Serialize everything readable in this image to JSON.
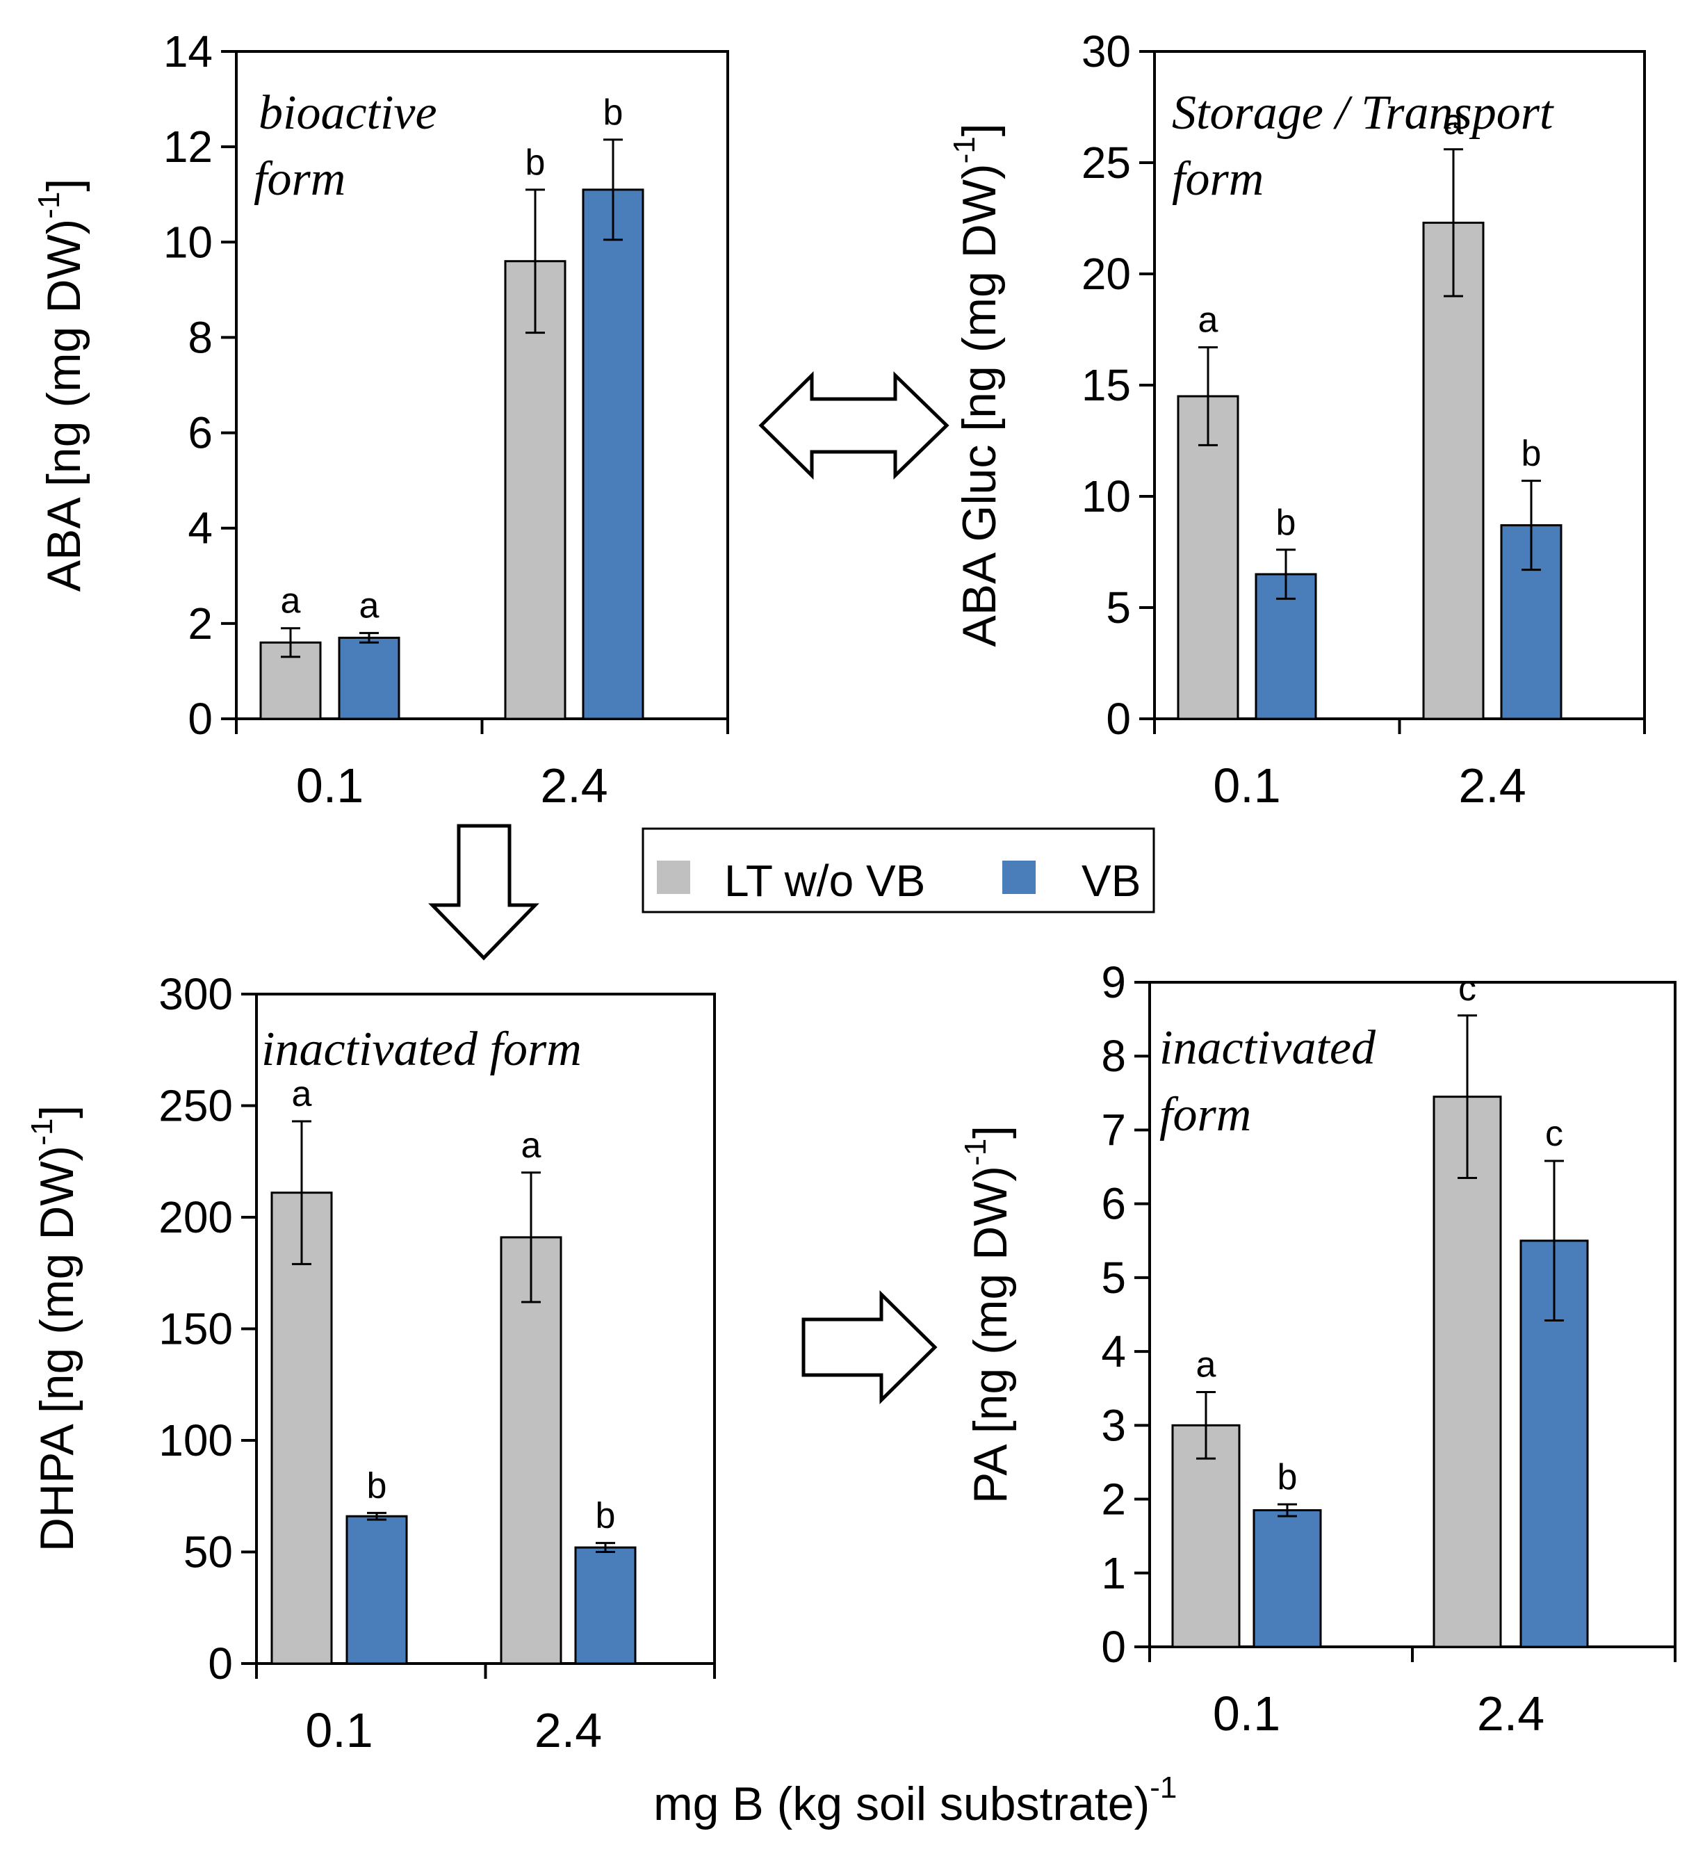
{
  "figure": {
    "x_title": "mg B (kg soil substrate)",
    "x_title_sup": "-1"
  },
  "legend": {
    "items": [
      {
        "name": "LT w/o VB",
        "color": "#c0c0c0"
      },
      {
        "name": "VB",
        "color": "#4a7ebb"
      }
    ]
  },
  "chart_data": [
    {
      "id": "aba",
      "type": "bar",
      "ylabel": "ABA [ng (mg DW)",
      "ylabel_sup": "-1",
      "ylabel_end": "]",
      "annotation": [
        "bioactive",
        "form"
      ],
      "categories": [
        "0.1",
        "2.4"
      ],
      "ylim": [
        0,
        14
      ],
      "yticks": [
        0,
        2,
        4,
        6,
        8,
        10,
        12,
        14
      ],
      "series": [
        {
          "name": "LT w/o VB",
          "values": [
            1.6,
            9.6
          ],
          "errors": [
            0.3,
            1.5
          ],
          "letters": [
            "a",
            "b"
          ]
        },
        {
          "name": "VB",
          "values": [
            1.7,
            11.1
          ],
          "errors": [
            0.1,
            1.05
          ],
          "letters": [
            "a",
            "b"
          ]
        }
      ]
    },
    {
      "id": "abagluc",
      "type": "bar",
      "ylabel": "ABA Gluc [ng (mg DW)",
      "ylabel_sup": "-1",
      "ylabel_end": "]",
      "annotation": [
        "Storage / Transport",
        "form"
      ],
      "categories": [
        "0.1",
        "2.4"
      ],
      "ylim": [
        0,
        30
      ],
      "yticks": [
        0,
        5,
        10,
        15,
        20,
        25,
        30
      ],
      "series": [
        {
          "name": "LT w/o VB",
          "values": [
            14.5,
            22.3
          ],
          "errors": [
            2.2,
            3.3
          ],
          "letters": [
            "a",
            "a"
          ]
        },
        {
          "name": "VB",
          "values": [
            6.5,
            8.7
          ],
          "errors": [
            1.1,
            2.0
          ],
          "letters": [
            "b",
            "b"
          ]
        }
      ]
    },
    {
      "id": "dhpa",
      "type": "bar",
      "ylabel": "DHPA [ng (mg DW)",
      "ylabel_sup": "-1",
      "ylabel_end": "]",
      "annotation": [
        "inactivated form"
      ],
      "categories": [
        "0.1",
        "2.4"
      ],
      "ylim": [
        0,
        300
      ],
      "yticks": [
        0,
        50,
        100,
        150,
        200,
        250,
        300
      ],
      "series": [
        {
          "name": "LT w/o VB",
          "values": [
            211,
            191
          ],
          "errors": [
            32,
            29
          ],
          "letters": [
            "a",
            "a"
          ]
        },
        {
          "name": "VB",
          "values": [
            66,
            52
          ],
          "errors": [
            1.5,
            2
          ],
          "letters": [
            "b",
            "b"
          ]
        }
      ]
    },
    {
      "id": "pa",
      "type": "bar",
      "ylabel": "PA [ng (mg DW)",
      "ylabel_sup": "-1",
      "ylabel_end": "]",
      "annotation": [
        "inactivated",
        "form"
      ],
      "categories": [
        "0.1",
        "2.4"
      ],
      "ylim": [
        0,
        9
      ],
      "yticks": [
        0,
        1,
        2,
        3,
        4,
        5,
        6,
        7,
        8,
        9
      ],
      "series": [
        {
          "name": "LT w/o VB",
          "values": [
            3.0,
            7.45
          ],
          "errors": [
            0.45,
            1.1
          ],
          "letters": [
            "a",
            "c"
          ]
        },
        {
          "name": "VB",
          "values": [
            1.85,
            5.5
          ],
          "errors": [
            0.08,
            1.08
          ],
          "letters": [
            "b",
            "c"
          ]
        }
      ]
    }
  ]
}
